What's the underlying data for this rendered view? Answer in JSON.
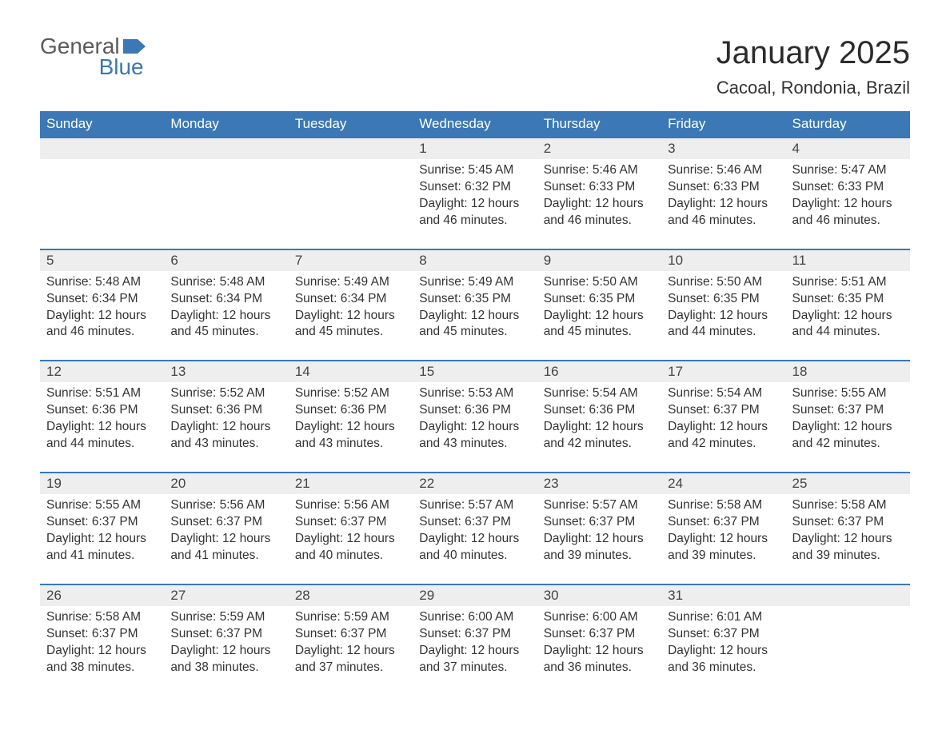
{
  "logo": {
    "top": "General",
    "bottom": "Blue",
    "flag_color": "#3b78b5"
  },
  "title": "January 2025",
  "location": "Cacoal, Rondonia, Brazil",
  "colors": {
    "header_bg": "#3b78b5",
    "header_text": "#ffffff",
    "daynum_bg": "#eeeeee",
    "rule": "#3b78b5",
    "body_text": "#333333",
    "page_bg": "#ffffff"
  },
  "typography": {
    "title_fontsize": 40,
    "location_fontsize": 22,
    "dayheader_fontsize": 17,
    "cell_fontsize": 15.5
  },
  "day_headers": [
    "Sunday",
    "Monday",
    "Tuesday",
    "Wednesday",
    "Thursday",
    "Friday",
    "Saturday"
  ],
  "weeks": [
    [
      null,
      null,
      null,
      {
        "n": "1",
        "sr": "5:45 AM",
        "ss": "6:32 PM",
        "dl": "12 hours and 46 minutes."
      },
      {
        "n": "2",
        "sr": "5:46 AM",
        "ss": "6:33 PM",
        "dl": "12 hours and 46 minutes."
      },
      {
        "n": "3",
        "sr": "5:46 AM",
        "ss": "6:33 PM",
        "dl": "12 hours and 46 minutes."
      },
      {
        "n": "4",
        "sr": "5:47 AM",
        "ss": "6:33 PM",
        "dl": "12 hours and 46 minutes."
      }
    ],
    [
      {
        "n": "5",
        "sr": "5:48 AM",
        "ss": "6:34 PM",
        "dl": "12 hours and 46 minutes."
      },
      {
        "n": "6",
        "sr": "5:48 AM",
        "ss": "6:34 PM",
        "dl": "12 hours and 45 minutes."
      },
      {
        "n": "7",
        "sr": "5:49 AM",
        "ss": "6:34 PM",
        "dl": "12 hours and 45 minutes."
      },
      {
        "n": "8",
        "sr": "5:49 AM",
        "ss": "6:35 PM",
        "dl": "12 hours and 45 minutes."
      },
      {
        "n": "9",
        "sr": "5:50 AM",
        "ss": "6:35 PM",
        "dl": "12 hours and 45 minutes."
      },
      {
        "n": "10",
        "sr": "5:50 AM",
        "ss": "6:35 PM",
        "dl": "12 hours and 44 minutes."
      },
      {
        "n": "11",
        "sr": "5:51 AM",
        "ss": "6:35 PM",
        "dl": "12 hours and 44 minutes."
      }
    ],
    [
      {
        "n": "12",
        "sr": "5:51 AM",
        "ss": "6:36 PM",
        "dl": "12 hours and 44 minutes."
      },
      {
        "n": "13",
        "sr": "5:52 AM",
        "ss": "6:36 PM",
        "dl": "12 hours and 43 minutes."
      },
      {
        "n": "14",
        "sr": "5:52 AM",
        "ss": "6:36 PM",
        "dl": "12 hours and 43 minutes."
      },
      {
        "n": "15",
        "sr": "5:53 AM",
        "ss": "6:36 PM",
        "dl": "12 hours and 43 minutes."
      },
      {
        "n": "16",
        "sr": "5:54 AM",
        "ss": "6:36 PM",
        "dl": "12 hours and 42 minutes."
      },
      {
        "n": "17",
        "sr": "5:54 AM",
        "ss": "6:37 PM",
        "dl": "12 hours and 42 minutes."
      },
      {
        "n": "18",
        "sr": "5:55 AM",
        "ss": "6:37 PM",
        "dl": "12 hours and 42 minutes."
      }
    ],
    [
      {
        "n": "19",
        "sr": "5:55 AM",
        "ss": "6:37 PM",
        "dl": "12 hours and 41 minutes."
      },
      {
        "n": "20",
        "sr": "5:56 AM",
        "ss": "6:37 PM",
        "dl": "12 hours and 41 minutes."
      },
      {
        "n": "21",
        "sr": "5:56 AM",
        "ss": "6:37 PM",
        "dl": "12 hours and 40 minutes."
      },
      {
        "n": "22",
        "sr": "5:57 AM",
        "ss": "6:37 PM",
        "dl": "12 hours and 40 minutes."
      },
      {
        "n": "23",
        "sr": "5:57 AM",
        "ss": "6:37 PM",
        "dl": "12 hours and 39 minutes."
      },
      {
        "n": "24",
        "sr": "5:58 AM",
        "ss": "6:37 PM",
        "dl": "12 hours and 39 minutes."
      },
      {
        "n": "25",
        "sr": "5:58 AM",
        "ss": "6:37 PM",
        "dl": "12 hours and 39 minutes."
      }
    ],
    [
      {
        "n": "26",
        "sr": "5:58 AM",
        "ss": "6:37 PM",
        "dl": "12 hours and 38 minutes."
      },
      {
        "n": "27",
        "sr": "5:59 AM",
        "ss": "6:37 PM",
        "dl": "12 hours and 38 minutes."
      },
      {
        "n": "28",
        "sr": "5:59 AM",
        "ss": "6:37 PM",
        "dl": "12 hours and 37 minutes."
      },
      {
        "n": "29",
        "sr": "6:00 AM",
        "ss": "6:37 PM",
        "dl": "12 hours and 37 minutes."
      },
      {
        "n": "30",
        "sr": "6:00 AM",
        "ss": "6:37 PM",
        "dl": "12 hours and 36 minutes."
      },
      {
        "n": "31",
        "sr": "6:01 AM",
        "ss": "6:37 PM",
        "dl": "12 hours and 36 minutes."
      },
      null
    ]
  ],
  "labels": {
    "sunrise": "Sunrise: ",
    "sunset": "Sunset: ",
    "daylight": "Daylight: "
  }
}
